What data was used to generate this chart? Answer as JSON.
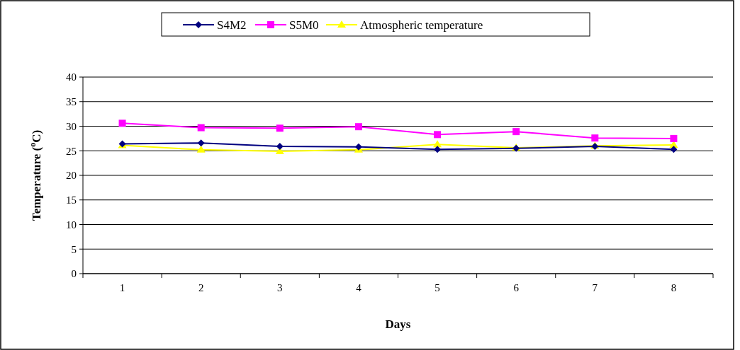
{
  "chart_data": {
    "type": "line",
    "xlabel": "Days",
    "ylabel": "Temperature ($^{o}$C)",
    "categories": [
      "1",
      "2",
      "3",
      "4",
      "5",
      "6",
      "7",
      "8"
    ],
    "ylim": [
      0,
      40
    ],
    "yticks": [
      0,
      5,
      10,
      15,
      20,
      25,
      30,
      35,
      40
    ],
    "grid": "y",
    "legend": "top",
    "series": [
      {
        "name": "S4M2",
        "color": "#000080",
        "marker": "diamond",
        "values": [
          26.4,
          26.6,
          25.9,
          25.8,
          25.3,
          25.5,
          25.9,
          25.3
        ]
      },
      {
        "name": "S5M0",
        "color": "#ff00ff",
        "marker": "square",
        "values": [
          30.6,
          29.7,
          29.6,
          29.9,
          28.3,
          28.9,
          27.6,
          27.5
        ]
      },
      {
        "name": "Atmospheric temperature",
        "color": "#ffff00",
        "marker": "triangle",
        "values": [
          26.1,
          25.2,
          24.9,
          25.2,
          26.3,
          25.6,
          26.0,
          26.2
        ]
      }
    ]
  }
}
